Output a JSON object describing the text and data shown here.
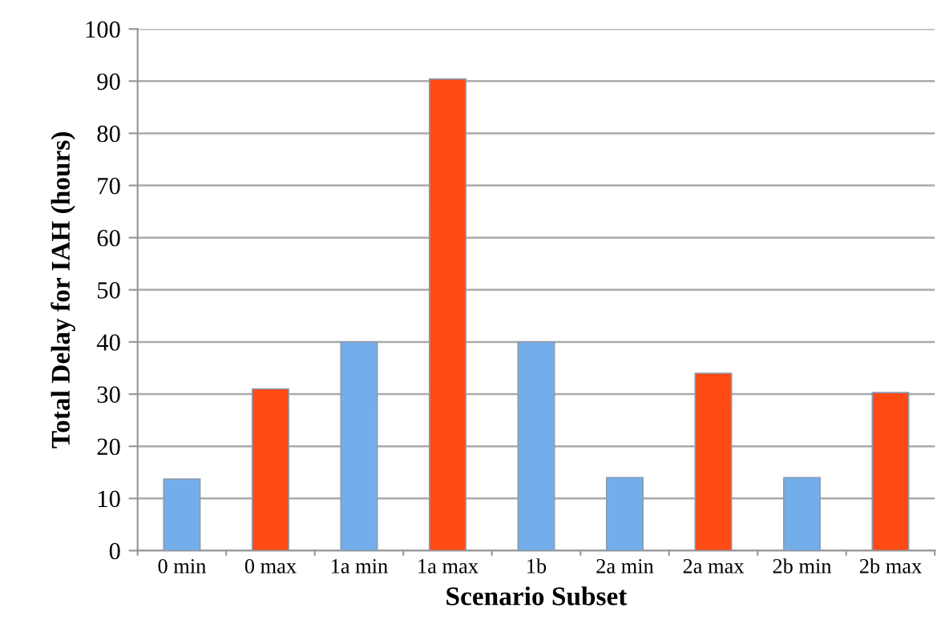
{
  "chart_data": {
    "type": "bar",
    "xlabel": "Scenario Subset",
    "ylabel": "Total Delay for IAH (hours)",
    "categories": [
      "0 min",
      "0 max",
      "1a min",
      "1a max",
      "1b",
      "2a min",
      "2a max",
      "2b min",
      "2b max"
    ],
    "values": [
      13.7,
      31,
      40,
      90.4,
      40,
      14,
      34,
      14,
      30.3
    ],
    "colors": [
      "#74aeea",
      "#ff4a14",
      "#74aeea",
      "#ff4a14",
      "#74aeea",
      "#74aeea",
      "#ff4a14",
      "#74aeea",
      "#ff4a14"
    ],
    "ylim": [
      0,
      100
    ],
    "yticks": [
      0,
      10,
      20,
      30,
      40,
      50,
      60,
      70,
      80,
      90,
      100
    ],
    "grid": "y",
    "legend": false
  }
}
